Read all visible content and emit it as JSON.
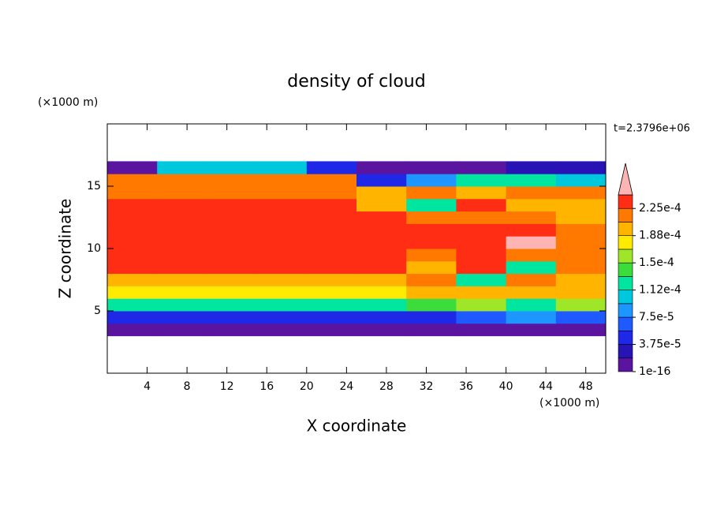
{
  "chart_data": {
    "type": "contour",
    "title": "density of cloud",
    "time_label": "t=2.3796e+06",
    "x_label": "X coordinate",
    "y_label": "Z coordinate",
    "x_unit": "(×1000 m)",
    "y_unit": "(×1000 m)",
    "xlim": [
      0,
      50
    ],
    "ylim": [
      0,
      20
    ],
    "xticks": [
      4,
      8,
      12,
      16,
      20,
      24,
      28,
      32,
      36,
      40,
      44,
      48
    ],
    "yticks": [
      5,
      10,
      15
    ],
    "x": [
      0,
      5,
      10,
      15,
      20,
      25,
      30,
      35,
      40,
      45,
      50
    ],
    "z": [
      3,
      4,
      5,
      6,
      7,
      8,
      9,
      10,
      11,
      12,
      13,
      14,
      15,
      16,
      17
    ],
    "values": [
      [
        1e-05,
        1e-05,
        1e-05,
        1e-05,
        1e-05,
        1e-05,
        1e-05,
        1e-05,
        1e-05,
        1e-05
      ],
      [
        5e-05,
        5e-05,
        5e-05,
        5e-05,
        5e-05,
        5e-05,
        5e-05,
        6e-05,
        9e-05,
        6e-05
      ],
      [
        0.00013,
        0.00013,
        0.00013,
        0.00013,
        0.00013,
        0.00013,
        0.00014,
        0.00016,
        0.00013,
        0.00015
      ],
      [
        0.00017,
        0.00017,
        0.00017,
        0.00017,
        0.00017,
        0.00017,
        0.00019,
        0.0002,
        0.00019,
        0.00019
      ],
      [
        0.0002,
        0.0002,
        0.0002,
        0.0002,
        0.0002,
        0.0002,
        0.00021,
        0.00013,
        0.00021,
        0.0002
      ],
      [
        0.00023,
        0.00023,
        0.00023,
        0.00023,
        0.00023,
        0.00023,
        0.00019,
        0.00023,
        0.00012,
        0.00022
      ],
      [
        0.00023,
        0.00023,
        0.00023,
        0.00023,
        0.00023,
        0.00023,
        0.00022,
        0.00023,
        0.00022,
        0.00021
      ],
      [
        0.000235,
        0.000235,
        0.000235,
        0.000235,
        0.000235,
        0.000235,
        0.00023,
        0.00024,
        0.00025,
        0.00022
      ],
      [
        0.000235,
        0.000235,
        0.000235,
        0.000235,
        0.000235,
        0.000235,
        0.00023,
        0.00023,
        0.00024,
        0.00021
      ],
      [
        0.00023,
        0.00023,
        0.00023,
        0.00023,
        0.00023,
        0.00023,
        0.00021,
        0.00022,
        0.00022,
        0.0002
      ],
      [
        0.00023,
        0.00023,
        0.00023,
        0.00023,
        0.00023,
        0.0002,
        0.00012,
        0.00023,
        0.00019,
        0.00019
      ],
      [
        0.00022,
        0.00022,
        0.00022,
        0.00022,
        0.00022,
        0.0002,
        0.00022,
        0.0002,
        0.00022,
        0.00021
      ],
      [
        0.00021,
        0.000215,
        0.000215,
        0.000215,
        0.00021,
        5e-05,
        8e-05,
        0.00012,
        0.00013,
        0.00011
      ],
      [
        1e-05,
        0.0001,
        0.0001,
        0.0001,
        5e-05,
        1e-05,
        1e-05,
        1e-05,
        2e-05,
        2e-05
      ]
    ],
    "colorbar": {
      "levels": [
        1e-16,
        1.875e-05,
        3.75e-05,
        5.625e-05,
        7.5e-05,
        9.375e-05,
        0.0001125,
        0.00013125,
        0.00015,
        0.00016875,
        0.0001875,
        0.00020625,
        0.000225,
        0.00024375
      ],
      "colors": [
        "#5a14a0",
        "#2814b4",
        "#1e28e6",
        "#1e5aff",
        "#1e96ff",
        "#00c8dc",
        "#00e6a0",
        "#3cdc3c",
        "#a0e628",
        "#ffeb00",
        "#ffb400",
        "#ff7800",
        "#ff2d14"
      ],
      "extend_color": "#ffb4b4",
      "ticks": [
        1e-16,
        {
          "value": 3.75e-05,
          "label": "3.75e-5"
        },
        {
          "value": 7.5e-05,
          "label": "7.5e-5"
        },
        {
          "value": 0.0001125,
          "label": "1.12e-4"
        },
        {
          "value": 0.00015,
          "label": "1.5e-4"
        },
        {
          "value": 0.0001875,
          "label": "1.88e-4"
        },
        {
          "value": 0.000225,
          "label": "2.25e-4"
        }
      ]
    }
  }
}
